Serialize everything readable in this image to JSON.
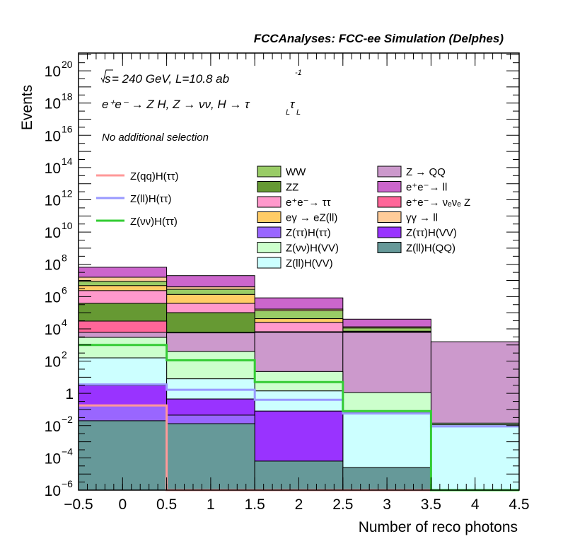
{
  "chart_data": {
    "type": "bar",
    "stacked": true,
    "log_y": true,
    "title": "FCCAnalyses: FCC-ee Simulation (Delphes)",
    "xlabel": "Number of reco photons",
    "ylabel": "Events",
    "xlim": [
      -0.5,
      4.5
    ],
    "ylim_log10": [
      -6,
      21.1
    ],
    "bin_edges": [
      -0.5,
      0.5,
      1.5,
      2.5,
      3.5,
      4.5
    ],
    "x_tick_labels": [
      "−0.5",
      "0",
      "0.5",
      "1",
      "1.5",
      "2",
      "2.5",
      "3",
      "3.5",
      "4",
      "4.5"
    ],
    "x_ticks": [
      -0.5,
      0,
      0.5,
      1,
      1.5,
      2,
      2.5,
      3,
      3.5,
      4,
      4.5
    ],
    "y_ticks": [
      {
        "exp": 20,
        "base": "10",
        "sup": "20"
      },
      {
        "exp": 18,
        "base": "10",
        "sup": "18"
      },
      {
        "exp": 16,
        "base": "10",
        "sup": "16"
      },
      {
        "exp": 14,
        "base": "10",
        "sup": "14"
      },
      {
        "exp": 12,
        "base": "10",
        "sup": "12"
      },
      {
        "exp": 10,
        "base": "10",
        "sup": "10"
      },
      {
        "exp": 8,
        "base": "10",
        "sup": "8"
      },
      {
        "exp": 6,
        "base": "10",
        "sup": "6"
      },
      {
        "exp": 4,
        "base": "10",
        "sup": "4"
      },
      {
        "exp": 2,
        "base": "10",
        "sup": "2"
      },
      {
        "exp": 0,
        "base": "1",
        "sup": ""
      },
      {
        "exp": -2,
        "base": "10",
        "sup": "−2"
      },
      {
        "exp": -4,
        "base": "10",
        "sup": "−4"
      },
      {
        "exp": -6,
        "base": "10",
        "sup": "−6"
      }
    ],
    "annotations": {
      "sqrt_s": "s",
      "line1": " = 240 GeV, L=10.8 ab",
      "line1_sup": "-1",
      "line2": "e⁺e⁻ → Z H, Z  → νν, H → τ",
      "line2_sub1": "L",
      "line2_tau": "τ",
      "line2_sub2": "L",
      "line3": "No additional selection"
    },
    "stack_note": "cumulative stacked top per bin, log10 units, listed bottom to top",
    "stack": [
      {
        "name": "Z(ll)H(QQ)",
        "color": "#669999",
        "cum_log10": [
          -1.7,
          -1.88,
          -4.2,
          -4.6,
          -6.0
        ]
      },
      {
        "name": "Z(ττ)H(ττ)",
        "color": "#9966ff",
        "cum_log10": [
          -0.78,
          -1.35,
          -4.2,
          -4.6,
          -6.0
        ]
      },
      {
        "name": "Z(ττ)H(VV)",
        "color": "#9933ff",
        "cum_log10": [
          0.49,
          -0.35,
          -1.1,
          -4.6,
          -6.0
        ]
      },
      {
        "name": "Z(ll)H(VV)",
        "color": "#ccffff",
        "cum_log10": [
          2.2,
          0.9,
          0.15,
          -1.2,
          -1.95
        ]
      },
      {
        "name": "Z(νν)H(VV)",
        "color": "#ccffcc",
        "cum_log10": [
          3.47,
          2.6,
          1.35,
          0.05,
          -1.85
        ]
      },
      {
        "name": "Z → QQ",
        "color": "#cc99cc",
        "cum_log10": [
          3.78,
          3.75,
          3.78,
          3.78,
          3.2
        ]
      },
      {
        "name": "e⁺e⁻→ νₑνₑ Z",
        "color": "#ff6699",
        "cum_log10": [
          4.48,
          3.78,
          3.78,
          3.78,
          3.2
        ]
      },
      {
        "name": "ZZ",
        "color": "#669933",
        "cum_log10": [
          5.58,
          5.0,
          3.82,
          3.8,
          3.2
        ]
      },
      {
        "name": "e⁺e⁻→ ττ",
        "color": "#ff99cc",
        "cum_log10": [
          6.37,
          5.58,
          4.4,
          3.82,
          3.2
        ]
      },
      {
        "name": "eγ → eZ(ll)",
        "color": "#ffcc66",
        "cum_log10": [
          6.68,
          6.13,
          4.63,
          3.85,
          3.2
        ]
      },
      {
        "name": "WW",
        "color": "#99cc66",
        "cum_log10": [
          6.94,
          6.45,
          5.12,
          4.05,
          3.2
        ]
      },
      {
        "name": "γγ → ll",
        "color": "#ffcc99",
        "cum_log10": [
          7.2,
          6.6,
          5.22,
          4.12,
          3.2
        ]
      },
      {
        "name": "e⁺e⁻→ ll",
        "color": "#cc66cc",
        "cum_log10": [
          7.82,
          7.3,
          5.92,
          4.6,
          3.2
        ]
      }
    ],
    "lines": [
      {
        "name": "Z(qq)H(ττ)",
        "color": "#ff9999",
        "log10": [
          -0.75,
          -6.0,
          -6.0,
          -6.0,
          -6.0
        ]
      },
      {
        "name": "Z(ll)H(ττ)",
        "color": "#9999ff",
        "log10": [
          0.55,
          0.22,
          -0.4,
          -1.25,
          -2.05
        ]
      },
      {
        "name": "Z(νν)H(ττ)",
        "color": "#33cc33",
        "log10": [
          3.0,
          2.05,
          0.7,
          -1.1,
          -6.0
        ]
      }
    ],
    "legend": {
      "lines_column": [
        "Z(qq)H(ττ)",
        "Z(ll)H(ττ)",
        "Z(νν)H(ττ)"
      ],
      "col1": [
        {
          "label": "WW",
          "color": "#99cc66"
        },
        {
          "label": "ZZ",
          "color": "#669933"
        },
        {
          "label": "e⁺e⁻→ ττ",
          "color": "#ff99cc"
        },
        {
          "label": "eγ → eZ(ll)",
          "color": "#ffcc66"
        },
        {
          "label": "Z(ττ)H(ττ)",
          "color": "#9966ff"
        },
        {
          "label": "Z(νν)H(VV)",
          "color": "#ccffcc"
        },
        {
          "label": "Z(ll)H(VV)",
          "color": "#ccffff"
        }
      ],
      "col2": [
        {
          "label": "Z → QQ",
          "color": "#cc99cc"
        },
        {
          "label": "e⁺e⁻→ ll",
          "color": "#cc66cc"
        },
        {
          "label": "e⁺e⁻→ νₑνₑ Z",
          "color": "#ff6699"
        },
        {
          "label": "γγ → ll",
          "color": "#ffcc99"
        },
        {
          "label": "Z(ττ)H(VV)",
          "color": "#9933ff"
        },
        {
          "label": "Z(ll)H(QQ)",
          "color": "#669999"
        }
      ],
      "placement": "top-center"
    }
  }
}
